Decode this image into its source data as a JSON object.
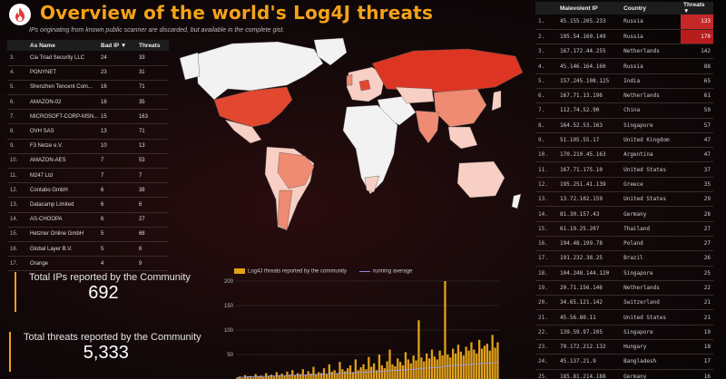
{
  "header": {
    "title": "Overview of the world's Log4J threats",
    "subtitle": "IPs originating from known public scanner are discarded, but available in the complete gist."
  },
  "left_table": {
    "columns": [
      "As Name",
      "Bad IP ▼",
      "Threats"
    ],
    "rows": [
      {
        "n": "3.",
        "name": "Cia Triad Security LLC",
        "bad": "24",
        "threats": "33"
      },
      {
        "n": "4.",
        "name": "PONYNET",
        "bad": "23",
        "threats": "31"
      },
      {
        "n": "5.",
        "name": "Shenzhen Tencent Com...",
        "bad": "16",
        "threats": "71"
      },
      {
        "n": "6.",
        "name": "AMAZON-02",
        "bad": "16",
        "threats": "35"
      },
      {
        "n": "7.",
        "name": "MICROSOFT-CORP-MSN...",
        "bad": "15",
        "threats": "163"
      },
      {
        "n": "8.",
        "name": "OVH SAS",
        "bad": "13",
        "threats": "71"
      },
      {
        "n": "9.",
        "name": "F3 Netze e.V.",
        "bad": "10",
        "threats": "13"
      },
      {
        "n": "10.",
        "name": "AMAZON-AES",
        "bad": "7",
        "threats": "53"
      },
      {
        "n": "11.",
        "name": "M247 Ltd",
        "bad": "7",
        "threats": "7"
      },
      {
        "n": "12.",
        "name": "Contabo GmbH",
        "bad": "6",
        "threats": "38"
      },
      {
        "n": "13.",
        "name": "Datacamp Limited",
        "bad": "6",
        "threats": "6"
      },
      {
        "n": "14.",
        "name": "AS-CHOOPA",
        "bad": "6",
        "threats": "27"
      },
      {
        "n": "15.",
        "name": "Hetzner Online GmbH",
        "bad": "5",
        "threats": "68"
      },
      {
        "n": "16.",
        "name": "Global Layer B.V.",
        "bad": "5",
        "threats": "6"
      },
      {
        "n": "17.",
        "name": "Orange",
        "bad": "4",
        "threats": "9"
      }
    ]
  },
  "kpis": {
    "ips_label": "Total IPs reported by the Community",
    "ips_value": "692",
    "threats_label": "Total threats reported by the Community",
    "threats_value": "5,333"
  },
  "right_table": {
    "columns": [
      "Malevolent IP",
      "Country",
      "Threats ▼"
    ],
    "rows": [
      {
        "n": "1.",
        "ip": "45.155.205.233",
        "country": "Russia",
        "threats": "133",
        "hl": "#c62828"
      },
      {
        "n": "2.",
        "ip": "195.54.160.149",
        "country": "Russia",
        "threats": "170",
        "hl": "#b71c1c"
      },
      {
        "n": "3.",
        "ip": "167.172.44.255",
        "country": "Netherlands",
        "threats": "142",
        "hl": ""
      },
      {
        "n": "4.",
        "ip": "45.146.164.160",
        "country": "Russia",
        "threats": "88",
        "hl": ""
      },
      {
        "n": "5.",
        "ip": "157.245.108.125",
        "country": "India",
        "threats": "65",
        "hl": ""
      },
      {
        "n": "6.",
        "ip": "167.71.13.196",
        "country": "Netherlands",
        "threats": "61",
        "hl": ""
      },
      {
        "n": "7.",
        "ip": "112.74.52.90",
        "country": "China",
        "threats": "59",
        "hl": ""
      },
      {
        "n": "8.",
        "ip": "164.52.53.163",
        "country": "Singapore",
        "threats": "57",
        "hl": ""
      },
      {
        "n": "9.",
        "ip": "51.105.55.17",
        "country": "United Kingdom",
        "threats": "47",
        "hl": ""
      },
      {
        "n": "10.",
        "ip": "170.210.45.163",
        "country": "Argentina",
        "threats": "47",
        "hl": ""
      },
      {
        "n": "11.",
        "ip": "167.71.175.10",
        "country": "United States",
        "threats": "37",
        "hl": ""
      },
      {
        "n": "12.",
        "ip": "195.251.41.139",
        "country": "Greece",
        "threats": "35",
        "hl": ""
      },
      {
        "n": "13.",
        "ip": "13.72.102.159",
        "country": "United States",
        "threats": "29",
        "hl": ""
      },
      {
        "n": "14.",
        "ip": "81.30.157.43",
        "country": "Germany",
        "threats": "28",
        "hl": ""
      },
      {
        "n": "15.",
        "ip": "61.19.25.207",
        "country": "Thailand",
        "threats": "27",
        "hl": ""
      },
      {
        "n": "16.",
        "ip": "194.48.199.78",
        "country": "Poland",
        "threats": "27",
        "hl": ""
      },
      {
        "n": "17.",
        "ip": "191.232.38.25",
        "country": "Brazil",
        "threats": "26",
        "hl": ""
      },
      {
        "n": "18.",
        "ip": "104.248.144.120",
        "country": "Singapore",
        "threats": "25",
        "hl": ""
      },
      {
        "n": "19.",
        "ip": "20.71.156.146",
        "country": "Netherlands",
        "threats": "22",
        "hl": ""
      },
      {
        "n": "20.",
        "ip": "34.65.121.142",
        "country": "Switzerland",
        "threats": "21",
        "hl": ""
      },
      {
        "n": "21.",
        "ip": "45.56.80.11",
        "country": "United States",
        "threats": "21",
        "hl": ""
      },
      {
        "n": "22.",
        "ip": "139.59.97.205",
        "country": "Singapore",
        "threats": "19",
        "hl": ""
      },
      {
        "n": "23.",
        "ip": "79.172.212.132",
        "country": "Hungary",
        "threats": "18",
        "hl": ""
      },
      {
        "n": "24.",
        "ip": "45.137.21.9",
        "country": "Bangladesh",
        "threats": "17",
        "hl": ""
      },
      {
        "n": "25.",
        "ip": "185.81.214.188",
        "country": "Germany",
        "threats": "16",
        "hl": ""
      }
    ]
  },
  "chart_data": {
    "type": "bar",
    "legend": [
      "Log4J threats reported by the community",
      "running average"
    ],
    "yticks": [
      "200",
      "150",
      "100",
      "50"
    ],
    "ylim": [
      0,
      200
    ],
    "values": [
      3,
      5,
      2,
      8,
      4,
      6,
      3,
      10,
      5,
      7,
      4,
      12,
      6,
      9,
      5,
      14,
      8,
      11,
      6,
      15,
      9,
      18,
      7,
      12,
      10,
      20,
      8,
      16,
      11,
      25,
      9,
      14,
      12,
      22,
      10,
      30,
      15,
      18,
      12,
      35,
      20,
      16,
      22,
      28,
      14,
      40,
      18,
      24,
      30,
      20,
      45,
      25,
      32,
      18,
      50,
      28,
      22,
      36,
      60,
      30,
      26,
      42,
      35,
      28,
      55,
      40,
      32,
      48,
      38,
      120,
      44,
      36,
      52,
      42,
      60,
      46,
      40,
      58,
      48,
      200,
      50,
      44,
      62,
      52,
      70,
      56,
      48,
      66,
      58,
      75,
      60,
      52,
      80,
      62,
      68,
      72,
      58,
      90,
      64,
      75
    ]
  },
  "map_colors": {
    "bg_land": "#f2f2f2",
    "light": "#f7cfc4",
    "mid": "#ee8b72",
    "strong": "#e2472f",
    "russia": "#dd3523"
  }
}
